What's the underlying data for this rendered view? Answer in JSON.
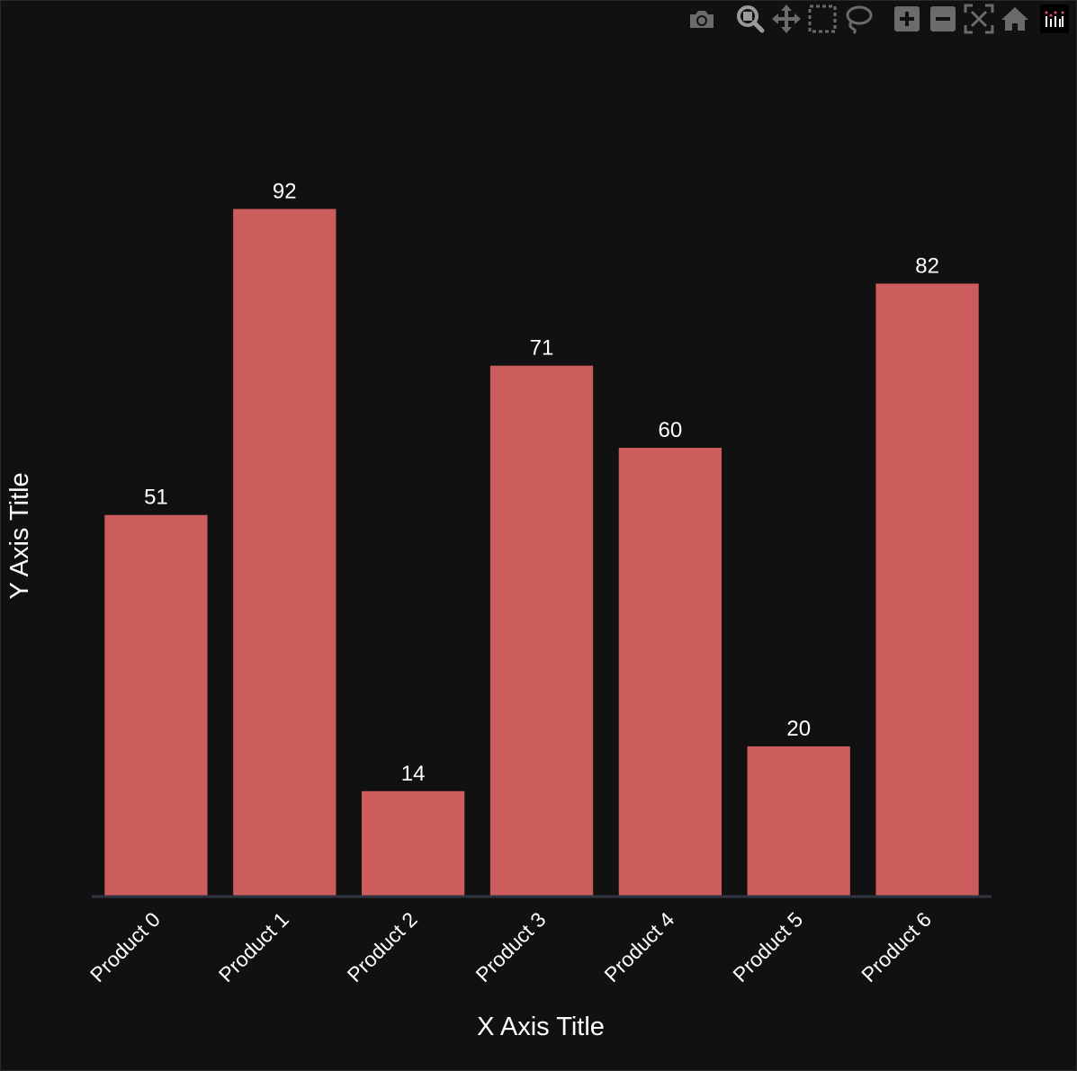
{
  "colors": {
    "background": "#111111",
    "bar_fill": "#cd5c5c",
    "axis_line": "#2e3440",
    "text": "#ffffff",
    "modebar_icon": "#6b6b6b",
    "modebar_icon_active": "#9a9a9a"
  },
  "modebar": {
    "buttons": [
      {
        "id": "download-plot",
        "icon": "camera-icon"
      },
      {
        "id": "zoom",
        "icon": "magnifier-icon"
      },
      {
        "id": "pan",
        "icon": "move-arrows-icon"
      },
      {
        "id": "box-select",
        "icon": "dashed-box-icon"
      },
      {
        "id": "lasso-select",
        "icon": "lasso-icon"
      },
      {
        "id": "zoom-in",
        "icon": "plus-square-icon"
      },
      {
        "id": "zoom-out",
        "icon": "minus-square-icon"
      },
      {
        "id": "autoscale",
        "icon": "autoscale-icon"
      },
      {
        "id": "reset-axes",
        "icon": "home-icon"
      }
    ],
    "logo": "plotly-logo-icon"
  },
  "chart_data": {
    "type": "bar",
    "title": "",
    "xlabel": "X Axis Title",
    "ylabel": "Y Axis Title",
    "categories": [
      "Product 0",
      "Product 1",
      "Product 2",
      "Product 3",
      "Product 4",
      "Product 5",
      "Product 6"
    ],
    "values": [
      51,
      92,
      14,
      71,
      60,
      20,
      82
    ],
    "data_labels": [
      "51",
      "92",
      "14",
      "71",
      "60",
      "20",
      "82"
    ],
    "ylim": [
      0,
      100
    ],
    "grid": false,
    "legend": "none"
  }
}
